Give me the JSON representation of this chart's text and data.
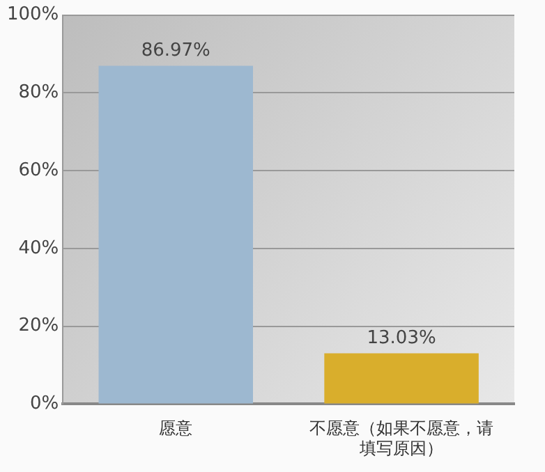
{
  "chart_data": {
    "type": "bar",
    "categories": [
      "愿意",
      "不愿意（如果不愿意，请填写原因）"
    ],
    "values": [
      86.97,
      13.03
    ],
    "colors": [
      "#9db8d0",
      "#d9ae2c"
    ],
    "value_labels": [
      "86.97%",
      "13.03%"
    ],
    "ylim": [
      0,
      100
    ],
    "yticks": [
      {
        "value": 0,
        "label": "0%"
      },
      {
        "value": 20,
        "label": "20%"
      },
      {
        "value": 40,
        "label": "40%"
      },
      {
        "value": 60,
        "label": "60%"
      },
      {
        "value": 80,
        "label": "80%"
      },
      {
        "value": 100,
        "label": "100%"
      }
    ],
    "grid": "y",
    "legend": false
  }
}
